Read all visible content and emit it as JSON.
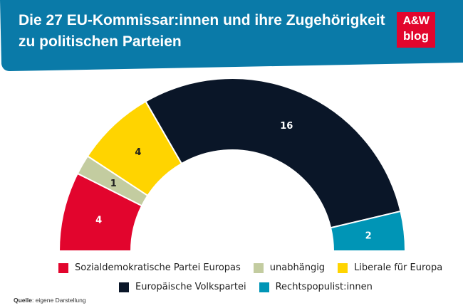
{
  "header": {
    "title_line1": "Die 27 EU-Kommissar:innen und ihre Zugehörigkeit",
    "title_line2": "zu politischen Parteien",
    "logo_line1": "A&W",
    "logo_line2": "blog"
  },
  "chart_data": {
    "type": "pie",
    "subtype": "half-donut (parliament arc)",
    "total": 27,
    "categories": [
      "Sozialdemokratische Partei Europas",
      "unabhängig",
      "Liberale für Europa",
      "Europäische Volkspartei",
      "Rechtspopulist:innen"
    ],
    "values": [
      4,
      1,
      4,
      16,
      2
    ],
    "colors": [
      "#e2052d",
      "#c3ccA0",
      "#ffd400",
      "#0a1628",
      "#0095b6"
    ],
    "label_colors": [
      "#ffffff",
      "#1e1e1e",
      "#1e1e1e",
      "#ffffff",
      "#ffffff"
    ],
    "legend_position": "bottom"
  },
  "legend": {
    "row1": [
      "Sozialdemokratische Partei Europas",
      "unabhängig",
      "Liberale für Europa"
    ],
    "row2": [
      "Europäische Volkspartei",
      "Rechtspopulist:innen"
    ]
  },
  "source": {
    "label": "Quelle",
    "text": ": eigene Darstellung"
  },
  "colors": {
    "header_bg": "#0a7aa8"
  }
}
